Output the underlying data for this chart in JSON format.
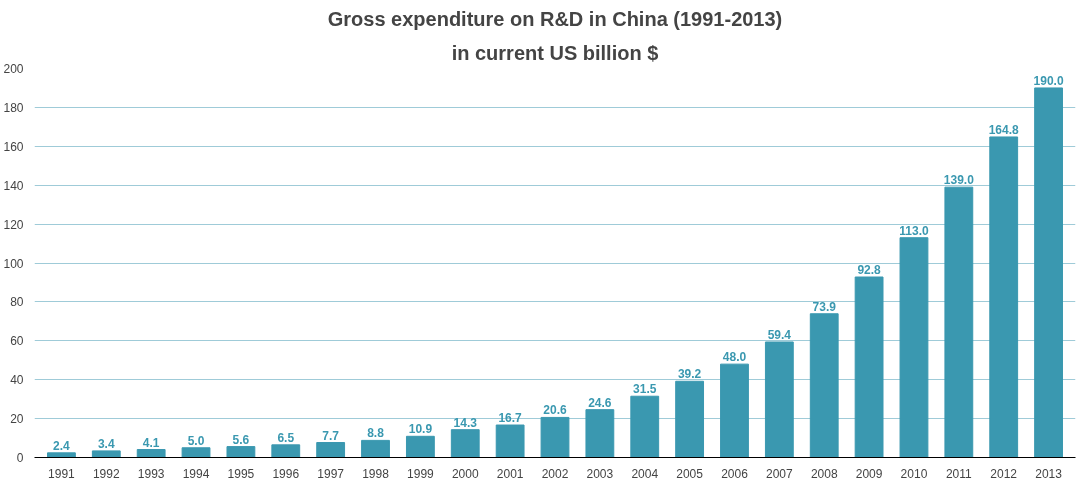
{
  "chart_data": {
    "type": "bar",
    "title": "Gross expenditure on R&D in China (1991-2013)",
    "subtitle": "in current US billion $",
    "categories": [
      "1991",
      "1992",
      "1993",
      "1994",
      "1995",
      "1996",
      "1997",
      "1998",
      "1999",
      "2000",
      "2001",
      "2002",
      "2003",
      "2004",
      "2005",
      "2006",
      "2007",
      "2008",
      "2009",
      "2010",
      "2011",
      "2012",
      "2013"
    ],
    "values": [
      2.4,
      3.4,
      4.1,
      5.0,
      5.6,
      6.5,
      7.7,
      8.8,
      10.9,
      14.3,
      16.7,
      20.6,
      24.6,
      31.5,
      39.2,
      48.0,
      59.4,
      73.9,
      92.8,
      113.0,
      139.0,
      164.8,
      190.0
    ],
    "value_labels": [
      "2.4",
      "3.4",
      "4.1",
      "5.0",
      "5.6",
      "6.5",
      "7.7",
      "8.8",
      "10.9",
      "14.3",
      "16.7",
      "20.6",
      "24.6",
      "31.5",
      "39.2",
      "48.0",
      "59.4",
      "73.9",
      "92.8",
      "113.0",
      "139.0",
      "164.8",
      "190.0"
    ],
    "color": "#3a98b0",
    "ylim": [
      0,
      200
    ],
    "yticks": [
      0,
      20,
      40,
      60,
      80,
      100,
      120,
      140,
      160,
      180,
      200
    ],
    "grid": "y"
  }
}
